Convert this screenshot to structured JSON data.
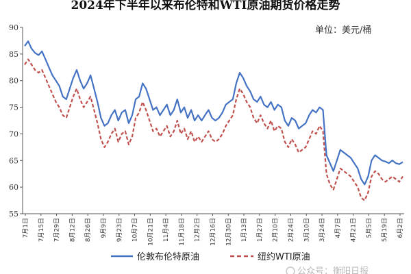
{
  "chart_data": {
    "type": "line",
    "title": "2024年下半年以来布伦特和WTI原油期货价格走势",
    "unit_label": "单位：美元/桶",
    "ylim": [
      55,
      90
    ],
    "yticks": [
      "55",
      "60",
      "65",
      "70",
      "75",
      "80",
      "85",
      "90"
    ],
    "xticks": [
      "7月1日",
      "7月15日",
      "7月29日",
      "8月12日",
      "8月26日",
      "9月9日",
      "9月23日",
      "10月7日",
      "10月21日",
      "11月4日",
      "11月18日",
      "12月2日",
      "12月16日",
      "12月30日",
      "1月13日",
      "1月27日",
      "2月10日",
      "2月24日",
      "3月10日",
      "3月24日",
      "4月7日",
      "4月21日",
      "5月5日",
      "5月19日",
      "6月2日"
    ],
    "grid": false,
    "legend_position": "bottom",
    "series": [
      {
        "name": "伦敦布伦特原油",
        "color": "#4472C4",
        "style": "solid",
        "values": [
          86.5,
          87.4,
          86.0,
          85.2,
          84.8,
          85.5,
          84.0,
          82.5,
          81.0,
          80.0,
          79.0,
          77.0,
          76.5,
          78.5,
          80.5,
          82.0,
          80.0,
          78.5,
          79.5,
          81.0,
          78.5,
          76.0,
          73.0,
          71.5,
          72.0,
          73.5,
          74.5,
          72.5,
          74.0,
          74.5,
          72.0,
          73.5,
          76.5,
          77.0,
          79.5,
          78.5,
          76.5,
          74.5,
          75.0,
          73.5,
          74.5,
          75.5,
          73.5,
          74.5,
          76.5,
          74.0,
          75.0,
          73.0,
          74.5,
          72.5,
          73.5,
          72.5,
          73.5,
          74.5,
          73.0,
          72.5,
          73.0,
          74.0,
          75.5,
          76.0,
          76.5,
          79.5,
          81.5,
          80.5,
          79.0,
          78.0,
          76.5,
          76.0,
          77.0,
          75.5,
          75.0,
          76.0,
          74.5,
          75.5,
          75.0,
          72.5,
          71.5,
          73.0,
          72.5,
          71.0,
          71.5,
          72.0,
          73.5,
          74.5,
          74.0,
          75.0,
          74.5,
          66.0,
          64.5,
          63.0,
          65.0,
          67.0,
          66.5,
          66.0,
          65.5,
          64.5,
          63.5,
          61.5,
          60.5,
          62.0,
          65.0,
          66.0,
          65.5,
          65.0,
          64.8,
          64.5,
          65.0,
          64.5,
          64.3,
          64.7
        ]
      },
      {
        "name": "纽约WTI原油",
        "color": "#C0504D",
        "style": "dashed",
        "values": [
          83.0,
          84.0,
          83.0,
          82.0,
          81.5,
          82.0,
          80.5,
          79.0,
          77.5,
          76.0,
          75.0,
          73.5,
          73.0,
          75.0,
          77.0,
          78.5,
          76.5,
          75.0,
          76.0,
          77.0,
          74.5,
          72.0,
          69.0,
          67.5,
          68.5,
          70.0,
          71.0,
          68.5,
          70.0,
          70.5,
          68.0,
          69.5,
          73.0,
          74.0,
          76.0,
          74.5,
          72.5,
          70.5,
          71.0,
          69.5,
          70.5,
          71.5,
          69.5,
          70.5,
          72.5,
          70.0,
          71.0,
          69.0,
          70.5,
          68.5,
          69.5,
          68.5,
          69.5,
          70.5,
          69.0,
          68.5,
          69.0,
          70.0,
          71.5,
          72.5,
          73.5,
          76.5,
          78.5,
          77.5,
          76.0,
          75.0,
          73.0,
          72.0,
          73.5,
          72.0,
          71.0,
          72.5,
          70.5,
          71.5,
          71.0,
          68.5,
          67.5,
          69.0,
          68.0,
          66.5,
          67.0,
          67.5,
          69.0,
          70.5,
          70.0,
          71.5,
          70.5,
          62.5,
          60.5,
          59.5,
          61.5,
          63.5,
          63.0,
          62.5,
          62.0,
          61.0,
          60.0,
          58.0,
          57.5,
          59.0,
          62.0,
          63.0,
          62.5,
          61.5,
          61.0,
          61.5,
          62.0,
          61.5,
          61.0,
          62.0
        ]
      }
    ]
  },
  "watermark": "公众号：衡阳日报"
}
